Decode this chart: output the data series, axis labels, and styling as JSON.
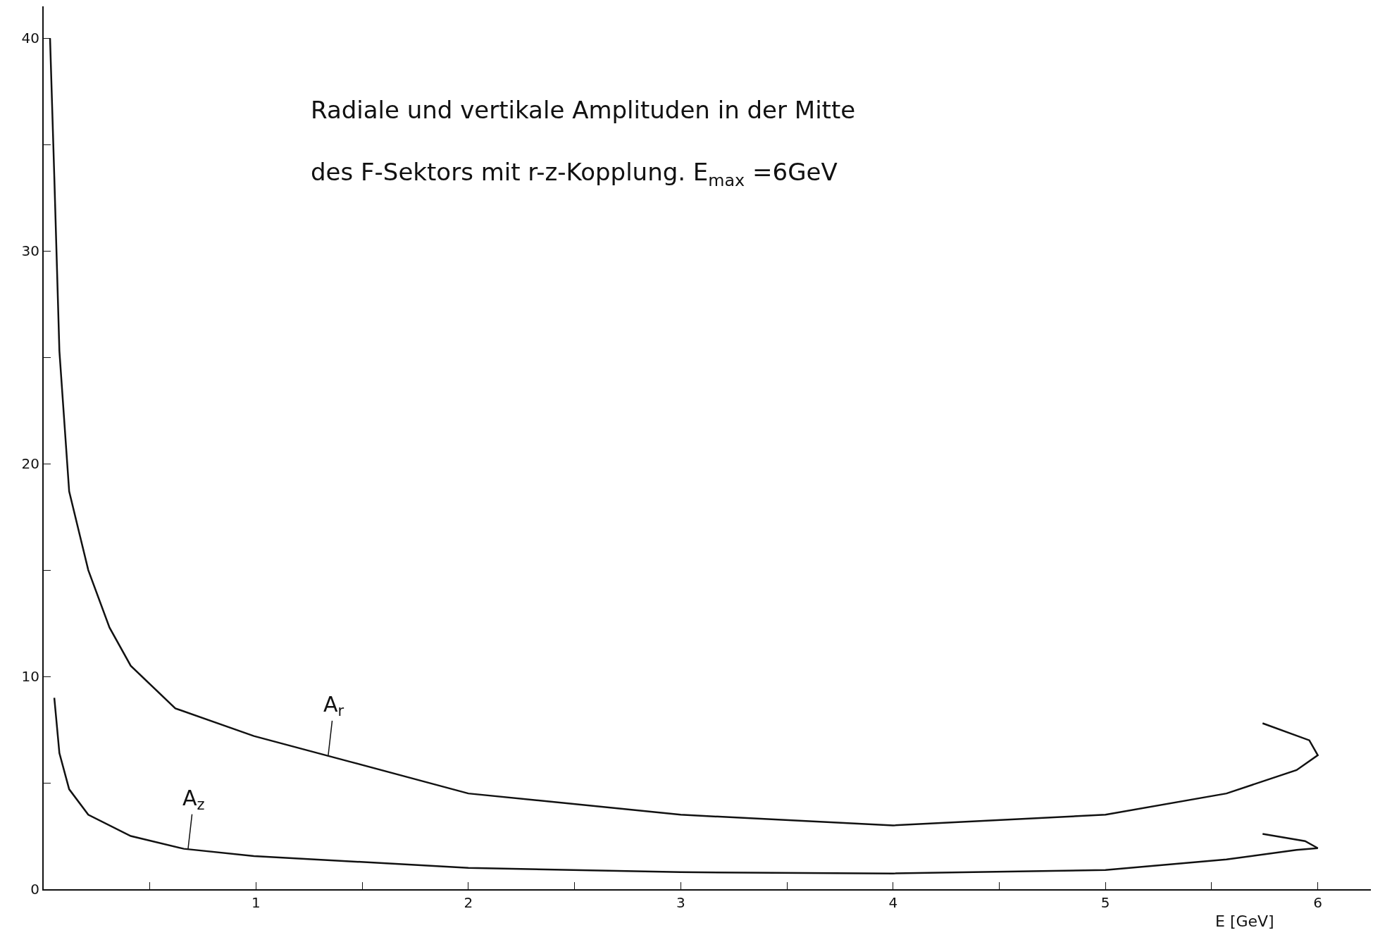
{
  "chart_data": {
    "type": "line",
    "title": "Radiale und vertikale Amplituden in der Mitte\ndes F-Sektors mit r-z-Kopplung. E$_{max}$ =6GeV",
    "xlabel": "E [GeV]",
    "series": [
      {
        "color": "#111111",
        "x": [
          0.03,
          0.05,
          0.074,
          0.12,
          0.21,
          0.31,
          0.41,
          0.62,
          0.99,
          1.44,
          2.0,
          3.0,
          4.0,
          5.0,
          5.57,
          5.9,
          6.0,
          5.96,
          5.74
        ],
        "values": [
          40,
          33.5,
          25.3,
          18.7,
          15.0,
          12.3,
          10.5,
          8.5,
          7.2,
          6.0,
          4.5,
          3.5,
          3.0,
          3.5,
          4.5,
          5.6,
          6.3,
          7.0,
          7.8
        ]
      },
      {
        "color": "#111111",
        "x": [
          0.05,
          0.074,
          0.12,
          0.21,
          0.41,
          0.66,
          0.99,
          2.0,
          3.0,
          4.0,
          5.0,
          5.57,
          5.9,
          6.0,
          5.94,
          5.74
        ],
        "values": [
          9.0,
          6.4,
          4.7,
          3.5,
          2.5,
          1.9,
          1.56,
          1.0,
          0.8,
          0.74,
          0.9,
          1.4,
          1.85,
          1.93,
          2.26,
          2.6
        ]
      }
    ],
    "annotations": [
      {
        "text": "A$_{r}$",
        "x": 1.34,
        "y": 6.3
      },
      {
        "text": "A$_{z}$",
        "x": 0.68,
        "y": 1.9
      }
    ],
    "xlim": [
      0,
      6.25
    ],
    "ylim": [
      0,
      41.5
    ],
    "xticks": [
      {
        "value": 0,
        "label": null
      },
      {
        "value": 0.5,
        "label": null
      },
      1,
      {
        "value": 1.5,
        "label": null
      },
      2,
      {
        "value": 2.5,
        "label": null
      },
      3,
      {
        "value": 3.5,
        "label": null
      },
      4,
      {
        "value": 4.5,
        "label": null
      },
      5,
      {
        "value": 5.5,
        "label": null
      },
      6
    ],
    "yticks": [
      0,
      {
        "value": 5,
        "label": null
      },
      10,
      {
        "value": 15,
        "label": null
      },
      20,
      {
        "value": 25,
        "label": null
      },
      30,
      {
        "value": 35,
        "label": null
      },
      40
    ],
    "marker": "none",
    "line_style": "solid"
  }
}
